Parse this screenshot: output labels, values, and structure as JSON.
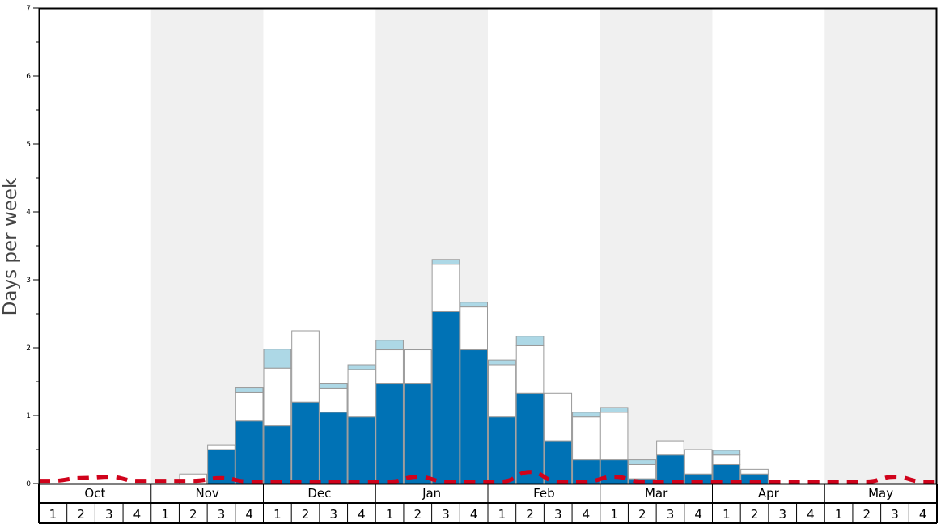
{
  "chart_data": {
    "type": "bar",
    "stacked": true,
    "ylabel": "Days per week",
    "ylim": [
      0,
      7
    ],
    "yticks": [
      "0",
      "1",
      "2",
      "3",
      "4",
      "5",
      "6",
      "7"
    ],
    "months": [
      "Oct",
      "Nov",
      "Dec",
      "Jan",
      "Feb",
      "Mar",
      "Apr",
      "May"
    ],
    "weeks": [
      "1",
      "2",
      "3",
      "4"
    ],
    "alternating_month_shading": true,
    "colors": {
      "series_dark": "#0072b5",
      "series_white": "#ffffff",
      "series_light": "#add8e6",
      "dashed_line": "#d0021b",
      "month_shade": "#f0f0f0",
      "bar_outline": "#999999"
    },
    "series": [
      {
        "values": [
          0,
          0,
          0,
          0,
          0,
          0,
          0.5,
          0.92,
          0.85,
          1.2,
          1.05,
          0.98,
          1.47,
          1.47,
          2.53,
          1.97,
          0.98,
          1.33,
          0.63,
          0.35,
          0.35,
          0.07,
          0.42,
          0.14,
          0.28,
          0.14,
          0,
          0,
          0,
          0,
          0,
          0
        ]
      },
      {
        "values": [
          0,
          0,
          0,
          0,
          0,
          0.14,
          0.07,
          0.42,
          0.85,
          1.05,
          0.35,
          0.7,
          0.5,
          0.5,
          0.7,
          0.63,
          0.77,
          0.7,
          0.7,
          0.63,
          0.7,
          0.21,
          0.21,
          0.36,
          0.14,
          0.07,
          0,
          0,
          0,
          0,
          0,
          0
        ]
      },
      {
        "values": [
          0,
          0,
          0,
          0,
          0,
          0,
          0,
          0.07,
          0.28,
          0,
          0.07,
          0.07,
          0.14,
          0,
          0.07,
          0.07,
          0.07,
          0.14,
          0,
          0.07,
          0.07,
          0.07,
          0,
          0,
          0.07,
          0,
          0,
          0,
          0,
          0,
          0,
          0
        ]
      }
    ],
    "dashed_line_values": [
      0.04,
      0.08,
      0.1,
      0.04,
      0.04,
      0.04,
      0.08,
      0.03,
      0.03,
      0.03,
      0.03,
      0.03,
      0.03,
      0.1,
      0.03,
      0.03,
      0.03,
      0.17,
      0.03,
      0.03,
      0.1,
      0.03,
      0.03,
      0.03,
      0.03,
      0.03,
      0.03,
      0.03,
      0.03,
      0.03,
      0.1,
      0.03
    ]
  }
}
